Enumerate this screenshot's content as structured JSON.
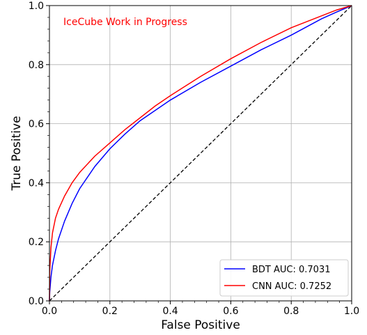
{
  "chart_data": {
    "type": "line",
    "title": "",
    "annotation": "IceCube Work in Progress",
    "annotation_color": "#ff0000",
    "xlabel": "False Positive",
    "ylabel": "True Positive",
    "xlim": [
      0,
      1
    ],
    "ylim": [
      0,
      1
    ],
    "xticks": [
      "0.0",
      "0.2",
      "0.4",
      "0.6",
      "0.8",
      "1.0"
    ],
    "yticks": [
      "0.0",
      "0.2",
      "0.4",
      "0.6",
      "0.8",
      "1.0"
    ],
    "grid": true,
    "legend_position": "bottom-right",
    "series": [
      {
        "name": "BDT AUC: 0.7031",
        "color": "#0000ff",
        "x": [
          0,
          0.001,
          0.005,
          0.01,
          0.02,
          0.03,
          0.05,
          0.075,
          0.1,
          0.15,
          0.2,
          0.25,
          0.3,
          0.35,
          0.4,
          0.5,
          0.6,
          0.7,
          0.8,
          0.9,
          0.95,
          1.0
        ],
        "y": [
          0,
          0.03,
          0.08,
          0.12,
          0.17,
          0.21,
          0.27,
          0.33,
          0.38,
          0.455,
          0.515,
          0.565,
          0.61,
          0.645,
          0.68,
          0.74,
          0.795,
          0.85,
          0.9,
          0.955,
          0.978,
          1.0
        ]
      },
      {
        "name": "CNN AUC: 0.7252",
        "color": "#ff0000",
        "x": [
          0,
          0.001,
          0.005,
          0.01,
          0.02,
          0.03,
          0.05,
          0.075,
          0.1,
          0.15,
          0.2,
          0.25,
          0.3,
          0.35,
          0.4,
          0.5,
          0.6,
          0.7,
          0.8,
          0.9,
          0.95,
          1.0
        ],
        "y": [
          0,
          0.1,
          0.18,
          0.23,
          0.28,
          0.31,
          0.355,
          0.4,
          0.435,
          0.49,
          0.535,
          0.58,
          0.62,
          0.66,
          0.695,
          0.76,
          0.82,
          0.875,
          0.925,
          0.965,
          0.985,
          1.0
        ]
      },
      {
        "name": "",
        "color": "#000000",
        "style": "dashed",
        "x": [
          0,
          1
        ],
        "y": [
          0,
          1
        ]
      }
    ]
  }
}
